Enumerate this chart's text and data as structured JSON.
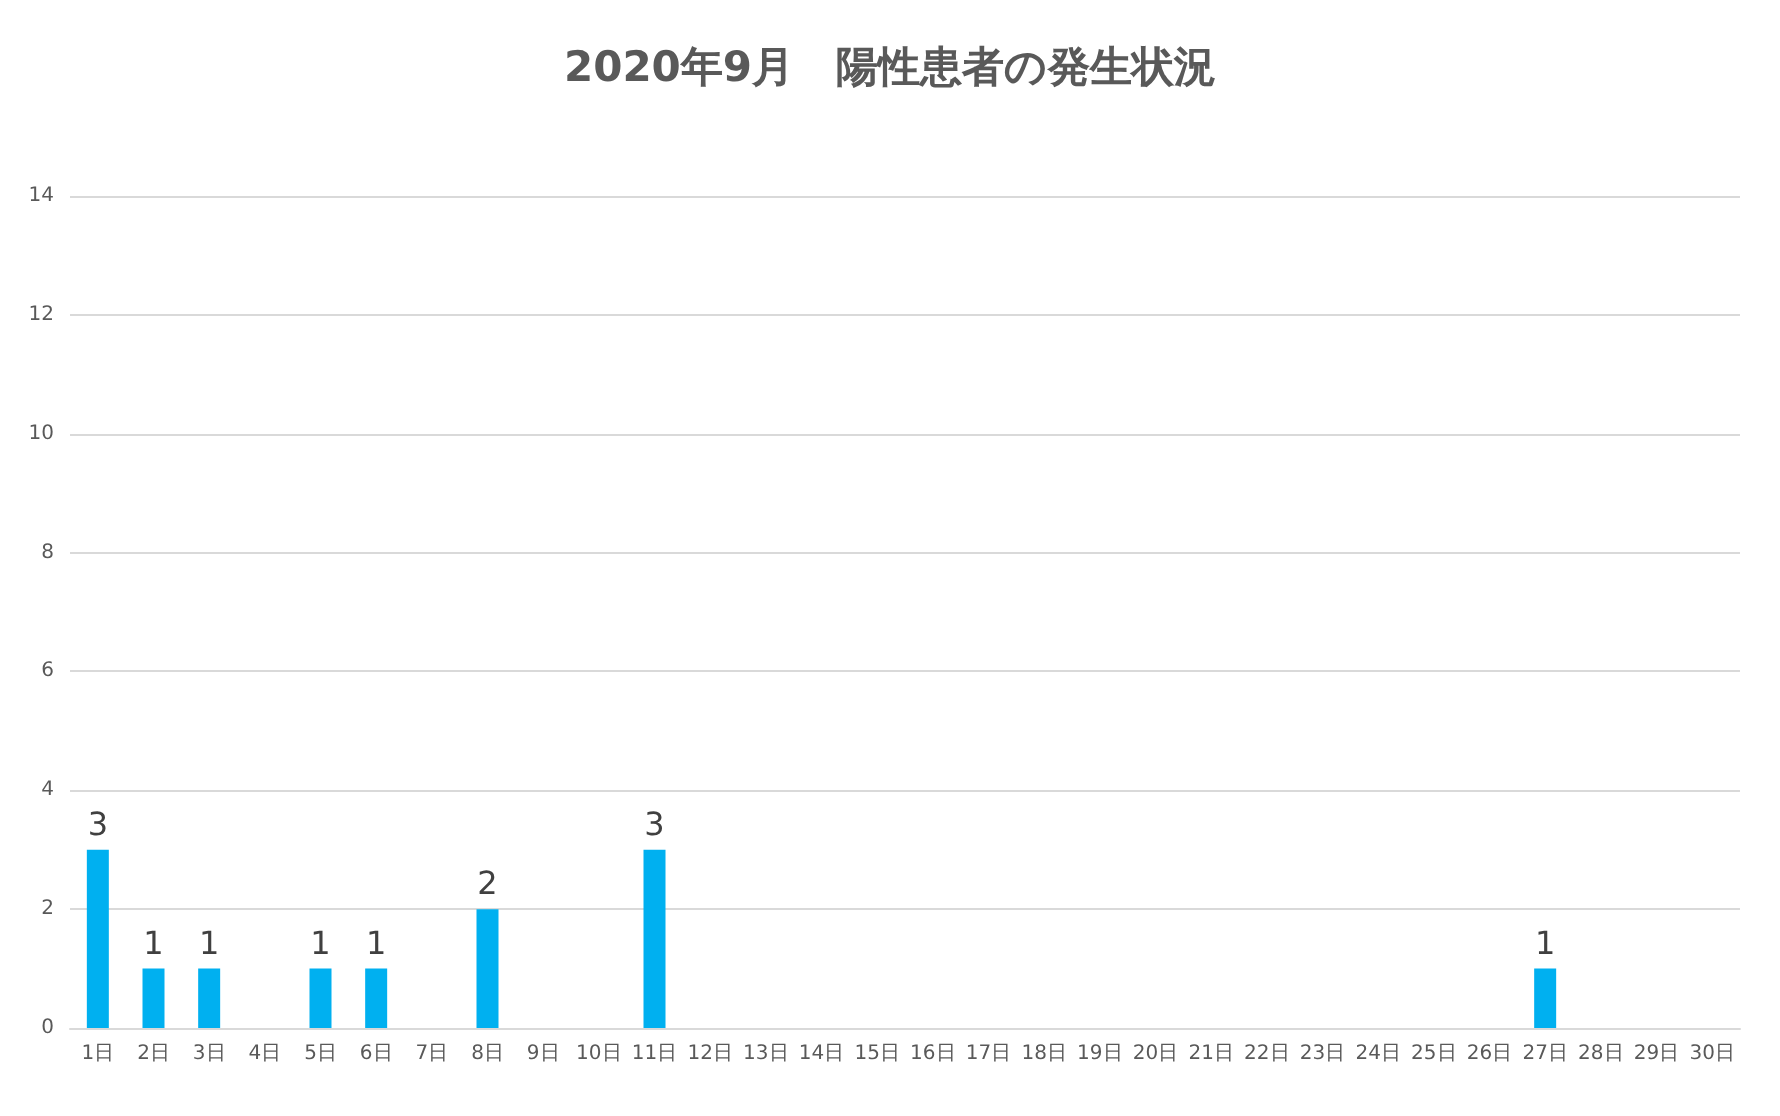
{
  "chart_data": {
    "type": "bar",
    "title": "2020年9月　陽性患者の発生状況",
    "categories": [
      "1日",
      "2日",
      "3日",
      "4日",
      "5日",
      "6日",
      "7日",
      "8日",
      "9日",
      "10日",
      "11日",
      "12日",
      "13日",
      "14日",
      "15日",
      "16日",
      "17日",
      "18日",
      "19日",
      "20日",
      "21日",
      "22日",
      "23日",
      "24日",
      "25日",
      "26日",
      "27日",
      "28日",
      "29日",
      "30日"
    ],
    "values": [
      3,
      1,
      1,
      0,
      1,
      1,
      0,
      2,
      0,
      0,
      3,
      0,
      0,
      0,
      0,
      0,
      0,
      0,
      0,
      0,
      0,
      0,
      0,
      0,
      0,
      0,
      1,
      0,
      0,
      0
    ],
    "value_labels": [
      "3",
      "1",
      "1",
      null,
      "1",
      "1",
      null,
      "2",
      null,
      null,
      "3",
      null,
      null,
      null,
      null,
      null,
      null,
      null,
      null,
      null,
      null,
      null,
      null,
      null,
      null,
      null,
      "1",
      null,
      null,
      null
    ],
    "color": "#00b0f0",
    "ylim": [
      0,
      14
    ],
    "yticks": [
      0,
      2,
      4,
      6,
      8,
      10,
      12,
      14
    ],
    "grid": "y"
  }
}
